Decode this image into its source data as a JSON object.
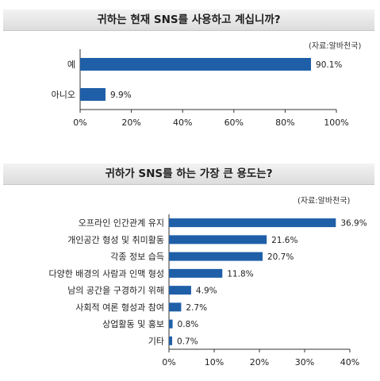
{
  "chart_data": [
    {
      "type": "bar",
      "orientation": "horizontal",
      "title": "귀하는 현재 SNS를 사용하고 계십니까?",
      "source": "(자료:알바천국)",
      "categories": [
        "예",
        "아니오"
      ],
      "values": [
        90.1,
        9.9
      ],
      "value_labels": [
        "90.1%",
        "9.9%"
      ],
      "xlim": [
        0,
        100
      ],
      "xticks": [
        "0%",
        "20%",
        "40%",
        "60%",
        "80%",
        "100%"
      ],
      "bar_color": "#1f5fa8",
      "grid": false
    },
    {
      "type": "bar",
      "orientation": "horizontal",
      "title": "귀하가 SNS를 하는 가장 큰 용도는?",
      "source": "(자료:알바천국)",
      "categories": [
        "오프라인 인간관계 유지",
        "개인공간 형성 및 취미활동",
        "각종 정보 습득",
        "다양한 배경의 사람과 인맥 형성",
        "남의 공간을 구경하기 위해",
        "사회적 여론 형성과 참여",
        "상업활동 및 홍보",
        "기타"
      ],
      "values": [
        36.9,
        21.6,
        20.7,
        11.8,
        4.9,
        2.7,
        0.8,
        0.7
      ],
      "value_labels": [
        "36.9%",
        "21.6%",
        "20.7%",
        "11.8%",
        "4.9%",
        "2.7%",
        "0.8%",
        "0.7%"
      ],
      "xlim": [
        0,
        40
      ],
      "xticks": [
        "0%",
        "10%",
        "20%",
        "30%",
        "40%"
      ],
      "bar_color": "#1f5fa8",
      "grid": false
    }
  ]
}
